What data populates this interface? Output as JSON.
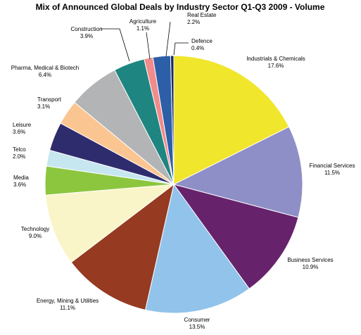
{
  "chart_data": {
    "type": "pie",
    "title": "Mix of Announced Global Deals by Industry Sector Q1-Q3 2009 - Volume",
    "start_angle_deg": 0,
    "direction": "clockwise",
    "slices": [
      {
        "label": "Industrials & Chemicals",
        "value": 17.6,
        "value_label": "17.6%",
        "color": "#f0e62c"
      },
      {
        "label": "Financial Services",
        "value": 11.5,
        "value_label": "11.5%",
        "color": "#8f8fc7"
      },
      {
        "label": "Business Services",
        "value": 10.9,
        "value_label": "10.9%",
        "color": "#66236b"
      },
      {
        "label": "Consumer",
        "value": 13.5,
        "value_label": "13.5%",
        "color": "#91c3eb"
      },
      {
        "label": "Energy, Mining & Utilities",
        "value": 11.1,
        "value_label": "11.1%",
        "color": "#963a21"
      },
      {
        "label": "Technology",
        "value": 9.0,
        "value_label": "9.0%",
        "color": "#faf5c8"
      },
      {
        "label": "Media",
        "value": 3.6,
        "value_label": "3.6%",
        "color": "#8cc63f"
      },
      {
        "label": "Telco",
        "value": 2.0,
        "value_label": "2.0%",
        "color": "#c6e6f0"
      },
      {
        "label": "Leisure",
        "value": 3.6,
        "value_label": "3.6%",
        "color": "#2f2c6e"
      },
      {
        "label": "Transport",
        "value": 3.1,
        "value_label": "3.1%",
        "color": "#fbc592"
      },
      {
        "label": "Pharma, Medical & Biotech",
        "value": 6.4,
        "value_label": "6.4%",
        "color": "#b3b4b6"
      },
      {
        "label": "Construction",
        "value": 3.9,
        "value_label": "3.9%",
        "color": "#1f8581"
      },
      {
        "label": "Agriculture",
        "value": 1.1,
        "value_label": "1.1%",
        "color": "#f28b8b"
      },
      {
        "label": "Real Estate",
        "value": 2.2,
        "value_label": "2.2%",
        "color": "#2c5fa8"
      },
      {
        "label": "Defence",
        "value": 0.4,
        "value_label": "0.4%",
        "color": "#1c2c5c"
      }
    ]
  }
}
